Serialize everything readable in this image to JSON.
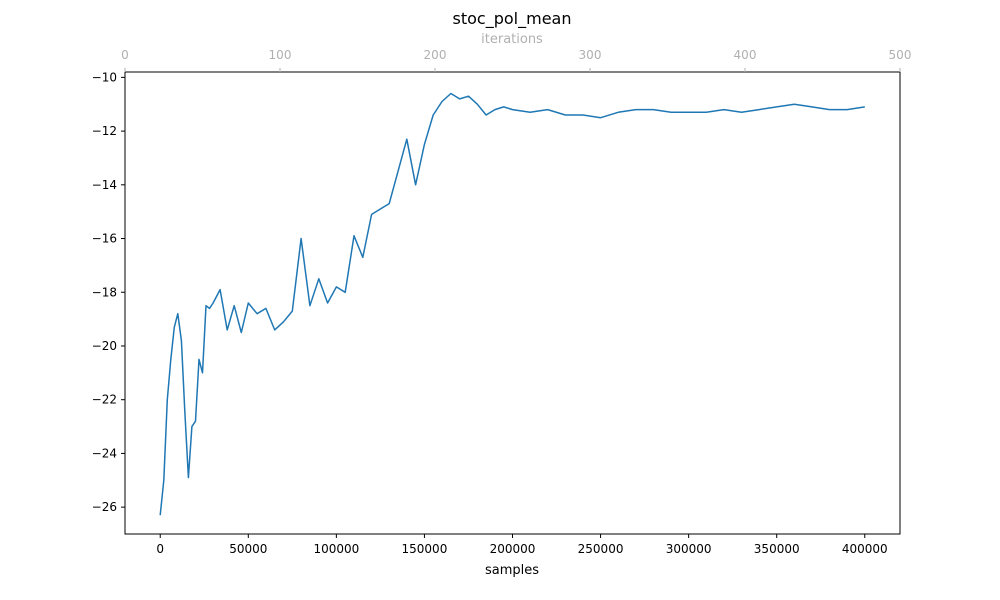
{
  "chart_data": {
    "type": "line",
    "title": "stoc_pol_mean",
    "xlabel": "samples",
    "x2label": "iterations",
    "ylabel": "",
    "xlim": [
      -20000,
      420000
    ],
    "ylim": [
      -27,
      -9.8
    ],
    "x2lim": [
      0,
      500
    ],
    "xticks": [
      0,
      50000,
      100000,
      150000,
      200000,
      250000,
      300000,
      350000,
      400000
    ],
    "yticks": [
      -26,
      -24,
      -22,
      -20,
      -18,
      -16,
      -14,
      -12,
      -10
    ],
    "x2ticks": [
      0,
      100,
      200,
      300,
      400,
      500
    ],
    "grid": false,
    "line_color": "#1f77b4",
    "top_axis_color": "#b0b0b0",
    "series": [
      {
        "x": [
          0,
          2000,
          4000,
          6000,
          8000,
          10000,
          12000,
          14000,
          16000,
          18000,
          20000,
          22000,
          24000,
          26000,
          28000,
          30000,
          34000,
          38000,
          42000,
          46000,
          50000,
          55000,
          60000,
          65000,
          70000,
          75000,
          80000,
          85000,
          90000,
          95000,
          100000,
          105000,
          110000,
          115000,
          120000,
          125000,
          130000,
          135000,
          140000,
          145000,
          150000,
          155000,
          160000,
          165000,
          170000,
          175000,
          180000,
          185000,
          190000,
          195000,
          200000,
          210000,
          220000,
          230000,
          240000,
          250000,
          260000,
          270000,
          280000,
          290000,
          300000,
          310000,
          320000,
          330000,
          340000,
          350000,
          360000,
          370000,
          380000,
          390000,
          400000
        ],
        "y": [
          -26.3,
          -25.0,
          -22.0,
          -20.5,
          -19.3,
          -18.8,
          -19.8,
          -22.5,
          -24.9,
          -23.0,
          -22.8,
          -20.5,
          -21.0,
          -18.5,
          -18.6,
          -18.4,
          -17.9,
          -19.4,
          -18.5,
          -19.5,
          -18.4,
          -18.8,
          -18.6,
          -19.4,
          -19.1,
          -18.7,
          -16.0,
          -18.5,
          -17.5,
          -18.4,
          -17.8,
          -18.0,
          -15.9,
          -16.7,
          -15.1,
          -14.9,
          -14.7,
          -13.5,
          -12.3,
          -14.0,
          -12.5,
          -11.4,
          -10.9,
          -10.6,
          -10.8,
          -10.7,
          -11.0,
          -11.4,
          -11.2,
          -11.1,
          -11.2,
          -11.3,
          -11.2,
          -11.4,
          -11.4,
          -11.5,
          -11.3,
          -11.2,
          -11.2,
          -11.3,
          -11.3,
          -11.3,
          -11.2,
          -11.3,
          -11.2,
          -11.1,
          -11.0,
          -11.1,
          -11.2,
          -11.2,
          -11.1
        ]
      }
    ]
  }
}
